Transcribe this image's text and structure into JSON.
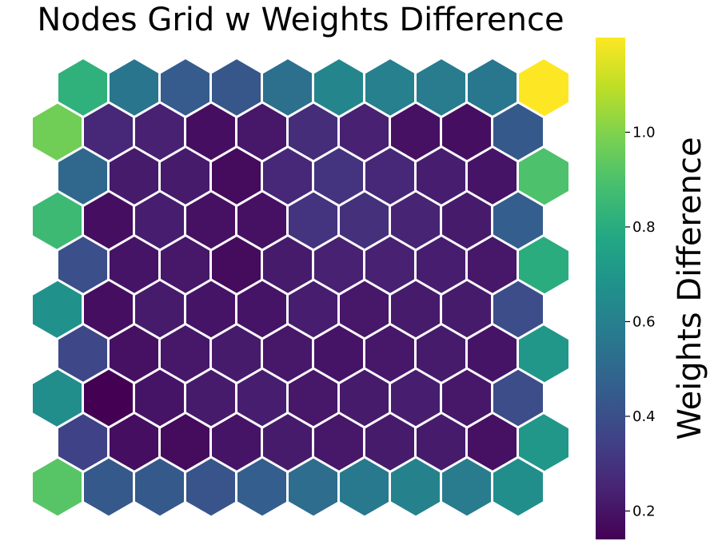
{
  "chart_data": {
    "type": "heatmap",
    "title": "Nodes Grid w Weights Difference",
    "colorbar": {
      "label": "Weights Difference",
      "range": [
        0.14,
        1.2
      ],
      "ticks": [
        "0.2",
        "0.4",
        "0.6",
        "0.8",
        "1.0"
      ],
      "tick_values": [
        0.2,
        0.4,
        0.6,
        0.8,
        1.0
      ],
      "colormap": "viridis"
    },
    "grid": {
      "rows": 10,
      "cols": 10,
      "layout": "hexagonal"
    },
    "values": [
      [
        0.82,
        0.55,
        0.45,
        0.43,
        0.53,
        0.62,
        0.6,
        0.58,
        0.56,
        1.2
      ],
      [
        0.97,
        0.26,
        0.24,
        0.18,
        0.21,
        0.28,
        0.24,
        0.19,
        0.18,
        0.44
      ],
      [
        0.5,
        0.22,
        0.22,
        0.17,
        0.26,
        0.3,
        0.26,
        0.23,
        0.2,
        0.9
      ],
      [
        0.86,
        0.18,
        0.23,
        0.19,
        0.19,
        0.3,
        0.29,
        0.25,
        0.22,
        0.46
      ],
      [
        0.4,
        0.2,
        0.21,
        0.17,
        0.22,
        0.24,
        0.24,
        0.23,
        0.21,
        0.8
      ],
      [
        0.68,
        0.18,
        0.22,
        0.2,
        0.2,
        0.23,
        0.21,
        0.22,
        0.22,
        0.39
      ],
      [
        0.37,
        0.19,
        0.21,
        0.22,
        0.21,
        0.2,
        0.21,
        0.22,
        0.2,
        0.7
      ],
      [
        0.66,
        0.14,
        0.2,
        0.22,
        0.23,
        0.21,
        0.22,
        0.23,
        0.21,
        0.39
      ],
      [
        0.35,
        0.18,
        0.17,
        0.2,
        0.22,
        0.21,
        0.22,
        0.22,
        0.19,
        0.7
      ],
      [
        0.92,
        0.44,
        0.44,
        0.42,
        0.46,
        0.52,
        0.57,
        0.61,
        0.58,
        0.66
      ]
    ]
  }
}
